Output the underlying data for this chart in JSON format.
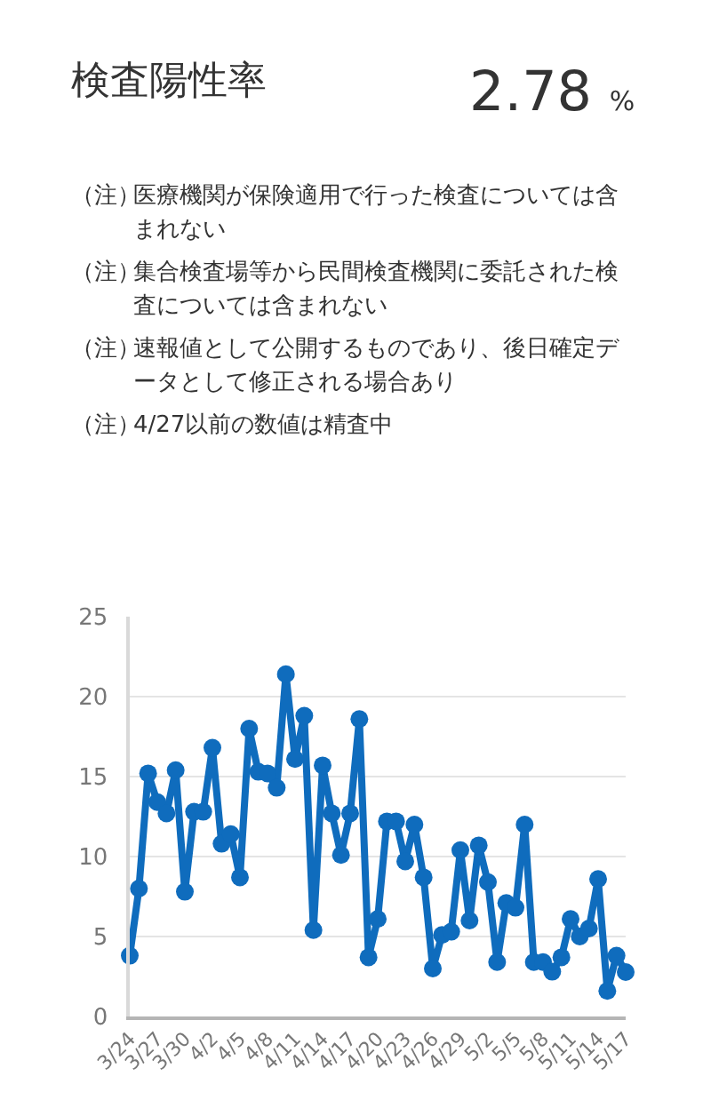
{
  "chart_data": {
    "type": "line",
    "title": "検査陽性率",
    "annotations": [
      "2.78 %",
      "（注）医療機関が保険適用で行った検査については含まれない",
      "（注）集合検査場等から民間検査機関に委託された検査については含まれない",
      "（注）速報値として公開するものであり、後日確定データとして修正される場合あり",
      "（注）4/27以前の数値は精査中"
    ],
    "categories": [
      "3/24",
      null,
      null,
      "3/27",
      null,
      null,
      "3/30",
      null,
      null,
      "4/2",
      null,
      null,
      "4/5",
      null,
      null,
      "4/8",
      null,
      null,
      "4/11",
      null,
      null,
      "4/14",
      null,
      null,
      "4/17",
      null,
      null,
      "4/20",
      null,
      null,
      "4/23",
      null,
      null,
      "4/26",
      null,
      null,
      "4/29",
      null,
      null,
      "5/2",
      null,
      null,
      "5/5",
      null,
      null,
      "5/8",
      null,
      null,
      "5/11",
      null,
      null,
      "5/14",
      null,
      null,
      "5/17"
    ],
    "series": [
      {
        "color": "#0f6cbd",
        "values": [
          3.8,
          8.0,
          15.2,
          13.4,
          12.7,
          15.4,
          7.8,
          12.8,
          12.8,
          16.8,
          10.8,
          11.4,
          8.7,
          18.0,
          15.3,
          15.2,
          14.3,
          21.4,
          16.1,
          18.8,
          5.4,
          15.7,
          12.7,
          10.1,
          12.7,
          18.6,
          3.7,
          6.1,
          12.2,
          12.2,
          9.7,
          12.0,
          8.7,
          3.0,
          5.1,
          5.3,
          10.4,
          6.0,
          10.7,
          8.4,
          3.4,
          7.1,
          6.8,
          12.0,
          3.4,
          3.4,
          2.8,
          3.7,
          6.1,
          5.0,
          5.5,
          8.6,
          1.6,
          3.8,
          2.78
        ]
      }
    ],
    "ylim": [
      0,
      25
    ],
    "yticks": [
      0,
      5,
      10,
      15,
      20,
      25
    ],
    "grid": "y",
    "marker": "circle",
    "line_style": "solid"
  }
}
